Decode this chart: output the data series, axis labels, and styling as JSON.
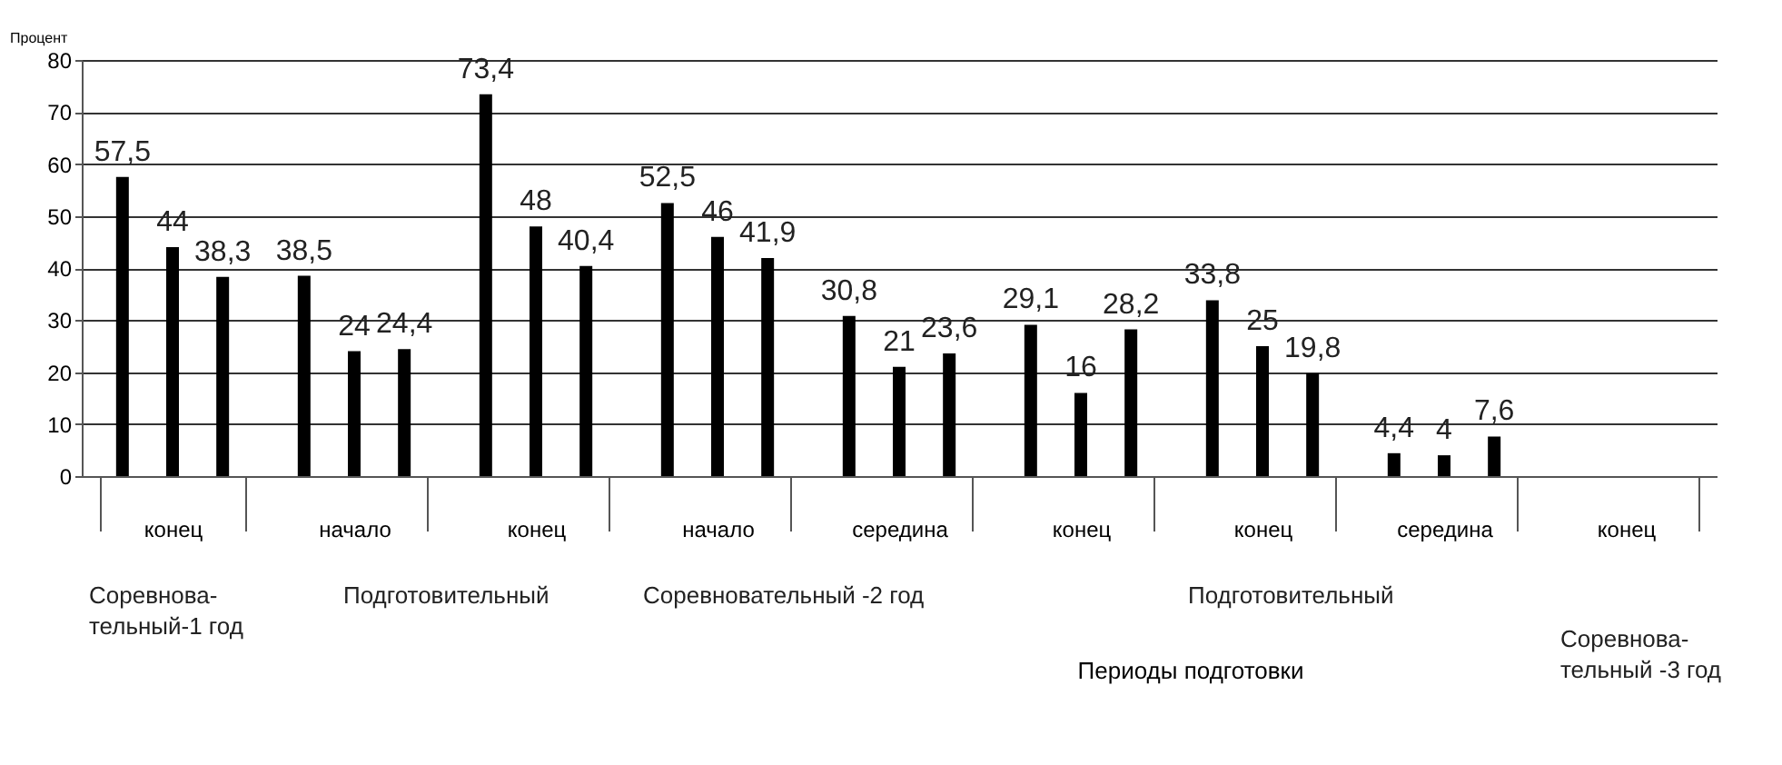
{
  "chart_data": {
    "type": "bar",
    "xlabel": "Периоды подготовки",
    "ylabel": "Процент",
    "categories": [
      "конец",
      "начало",
      "конец",
      "начало",
      "середина",
      "конец",
      "конец",
      "середина",
      "конец"
    ],
    "series": [
      {
        "color": "#000000",
        "values": [
          57.5,
          38.5,
          73.4,
          52.5,
          30.8,
          29.1,
          33.8,
          4.4,
          null
        ],
        "value_labels": [
          "57,5",
          "38,5",
          "73,4",
          "52,5",
          "30,8",
          "29,1",
          "33,8",
          "4,4",
          null
        ]
      },
      {
        "color": "#000000",
        "values": [
          44,
          24,
          48,
          46,
          21,
          16,
          25,
          4,
          null
        ],
        "value_labels": [
          "44",
          "24",
          "48",
          "46",
          "21",
          "16",
          "25",
          "4",
          null
        ]
      },
      {
        "color": "#000000",
        "values": [
          38.3,
          24.4,
          40.4,
          41.9,
          23.6,
          28.2,
          19.8,
          7.6,
          null
        ],
        "value_labels": [
          "38,3",
          "24,4",
          "40,4",
          "41,9",
          "23,6",
          "28,2",
          "19,8",
          "7,6",
          null
        ]
      }
    ],
    "ylim": [
      0,
      80
    ],
    "yticks": [
      0,
      10,
      20,
      30,
      40,
      50,
      60,
      70,
      80
    ],
    "grid": "y",
    "annotations": [
      "Соревнова-тельный-1 год",
      "Подготовительный",
      "Соревновательный -2 год",
      "Подготовительный",
      "Соревнова-тельный -3 год"
    ]
  }
}
